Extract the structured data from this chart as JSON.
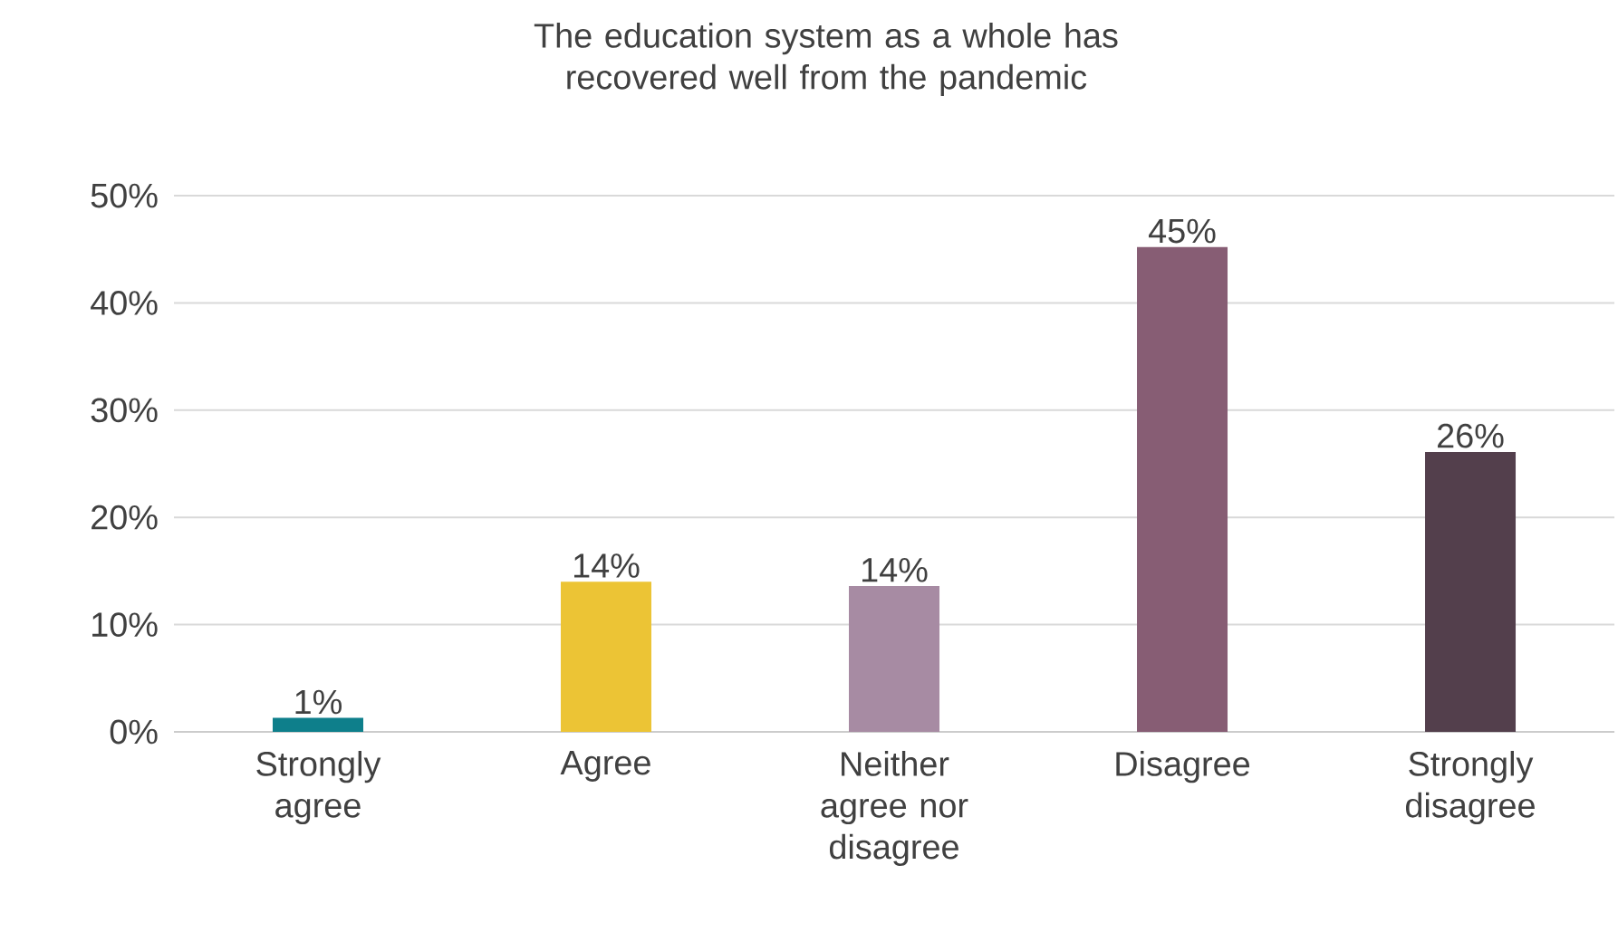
{
  "chart_data": {
    "type": "bar",
    "title": "The education system as a whole has recovered well from the pandemic",
    "categories": [
      "Strongly agree",
      "Agree",
      "Neither agree nor disagree",
      "Disagree",
      "Strongly disagree"
    ],
    "values": [
      1.3,
      14,
      13.6,
      45.2,
      26.1
    ],
    "value_labels": [
      "1%",
      "14%",
      "14%",
      "45%",
      "26%"
    ],
    "colors": [
      "#0e7f8b",
      "#ecc435",
      "#a78ba3",
      "#875d74",
      "#533f4c"
    ],
    "ylim": [
      0,
      50
    ],
    "yticks": [
      {
        "value": 0,
        "label": "0%"
      },
      {
        "value": 10,
        "label": "10%"
      },
      {
        "value": 20,
        "label": "20%"
      },
      {
        "value": 30,
        "label": "30%"
      },
      {
        "value": 40,
        "label": "40%"
      },
      {
        "value": 50,
        "label": "50%"
      }
    ],
    "grid": "y"
  }
}
